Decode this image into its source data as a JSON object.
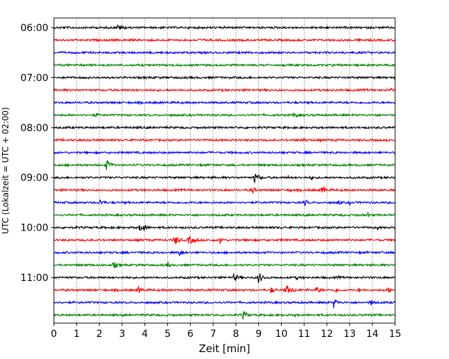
{
  "chart_data": {
    "type": "line",
    "chart_kind": "helicorder",
    "title": "",
    "xlabel": "Zeit  [min]",
    "ylabel": "UTC (Lokalzeit = UTC + 02:00)",
    "xlim": [
      0,
      15
    ],
    "x_ticks": [
      0,
      1,
      2,
      3,
      4,
      5,
      6,
      7,
      8,
      9,
      10,
      11,
      12,
      13,
      14,
      15
    ],
    "x_tick_labels": [
      "0",
      "1",
      "2",
      "3",
      "4",
      "5",
      "6",
      "7",
      "8",
      "9",
      "10",
      "11",
      "12",
      "13",
      "14",
      "15"
    ],
    "x_grid": "dotted vertical lines at every minute",
    "y_tick_labels": [
      "06:00",
      "07:00",
      "08:00",
      "09:00",
      "10:00",
      "11:00"
    ],
    "trace_interval_minutes": 15,
    "trace_colors": [
      "#000000",
      "#ff0000",
      "#0000ff",
      "#008000"
    ],
    "series": [
      {
        "start": "06:00",
        "events": [
          {
            "t": 2.8,
            "amp": 0.35,
            "dur": 0.9
          },
          {
            "t": 0.3,
            "amp": 0.15,
            "dur": 0.3
          }
        ]
      },
      {
        "start": "06:15",
        "events": [
          {
            "t": 6.3,
            "amp": 0.2,
            "dur": 1.2
          },
          {
            "t": 7.2,
            "amp": 0.15,
            "dur": 0.2
          }
        ]
      },
      {
        "start": "06:30",
        "events": []
      },
      {
        "start": "06:45",
        "events": []
      },
      {
        "start": "07:00",
        "events": [
          {
            "t": 6.0,
            "amp": 0.18,
            "dur": 1.2
          },
          {
            "t": 8.5,
            "amp": 0.1,
            "dur": 1.0
          }
        ]
      },
      {
        "start": "07:15",
        "events": [
          {
            "t": 14.8,
            "amp": 0.35,
            "dur": 0.3
          }
        ]
      },
      {
        "start": "07:30",
        "events": []
      },
      {
        "start": "07:45",
        "events": [
          {
            "t": 1.8,
            "amp": 0.25,
            "dur": 0.8
          },
          {
            "t": 10.5,
            "amp": 0.3,
            "dur": 1.2
          }
        ]
      },
      {
        "start": "08:00",
        "events": [
          {
            "t": 3.8,
            "amp": 0.3,
            "dur": 0.1
          },
          {
            "t": 8.5,
            "amp": 0.2,
            "dur": 0.3
          }
        ]
      },
      {
        "start": "08:15",
        "events": [
          {
            "t": 10.9,
            "amp": 0.4,
            "dur": 0.4
          }
        ]
      },
      {
        "start": "08:30",
        "events": []
      },
      {
        "start": "08:45",
        "events": [
          {
            "t": 2.3,
            "amp": 0.7,
            "dur": 0.5
          },
          {
            "t": 7.0,
            "amp": 0.12,
            "dur": 0.2
          }
        ]
      },
      {
        "start": "09:00",
        "events": [
          {
            "t": 8.8,
            "amp": 0.7,
            "dur": 0.6
          },
          {
            "t": 10.3,
            "amp": 0.3,
            "dur": 0.2
          },
          {
            "t": 11.3,
            "amp": 0.5,
            "dur": 0.2
          },
          {
            "t": 6.3,
            "amp": 0.15,
            "dur": 0.1
          }
        ]
      },
      {
        "start": "09:15",
        "events": [
          {
            "t": 8.7,
            "amp": 0.6,
            "dur": 0.3
          },
          {
            "t": 10.4,
            "amp": 0.4,
            "dur": 0.1
          },
          {
            "t": 11.8,
            "amp": 0.8,
            "dur": 0.3
          },
          {
            "t": 11.2,
            "amp": 0.2,
            "dur": 0.1
          }
        ]
      },
      {
        "start": "09:30",
        "events": [
          {
            "t": 2.0,
            "amp": 0.5,
            "dur": 0.5
          },
          {
            "t": 3.1,
            "amp": 0.3,
            "dur": 0.1
          },
          {
            "t": 11.0,
            "amp": 0.6,
            "dur": 0.3
          },
          {
            "t": 12.5,
            "amp": 0.5,
            "dur": 0.2
          },
          {
            "t": 13.0,
            "amp": 0.4,
            "dur": 0.1
          }
        ]
      },
      {
        "start": "09:45",
        "events": [
          {
            "t": 13.8,
            "amp": 0.35,
            "dur": 0.2
          },
          {
            "t": 11.9,
            "amp": 0.2,
            "dur": 0.1
          }
        ]
      },
      {
        "start": "10:00",
        "events": [
          {
            "t": 3.8,
            "amp": 0.8,
            "dur": 0.5
          },
          {
            "t": 14.2,
            "amp": 0.3,
            "dur": 0.3
          }
        ]
      },
      {
        "start": "10:15",
        "events": [
          {
            "t": 5.3,
            "amp": 0.7,
            "dur": 0.5
          },
          {
            "t": 5.9,
            "amp": 0.6,
            "dur": 0.8
          },
          {
            "t": 7.3,
            "amp": 0.6,
            "dur": 0.3
          },
          {
            "t": 8.5,
            "amp": 0.3,
            "dur": 0.2
          },
          {
            "t": 9.3,
            "amp": 0.3,
            "dur": 0.3
          },
          {
            "t": 10.0,
            "amp": 0.25,
            "dur": 0.2
          },
          {
            "t": 4.9,
            "amp": 0.3,
            "dur": 0.1
          }
        ]
      },
      {
        "start": "10:30",
        "events": [
          {
            "t": 5.5,
            "amp": 0.5,
            "dur": 0.5
          },
          {
            "t": 4.8,
            "amp": 0.3,
            "dur": 0.1
          },
          {
            "t": 6.5,
            "amp": 0.2,
            "dur": 0.1
          }
        ]
      },
      {
        "start": "10:45",
        "events": [
          {
            "t": 2.6,
            "amp": 0.5,
            "dur": 0.5
          },
          {
            "t": 5.0,
            "amp": 0.5,
            "dur": 0.3
          }
        ]
      },
      {
        "start": "11:00",
        "events": [
          {
            "t": 7.9,
            "amp": 0.5,
            "dur": 0.6
          },
          {
            "t": 9.0,
            "amp": 0.8,
            "dur": 0.4
          },
          {
            "t": 10.7,
            "amp": 0.6,
            "dur": 0.1
          },
          {
            "t": 12.5,
            "amp": 0.3,
            "dur": 0.2
          },
          {
            "t": 13.6,
            "amp": 0.2,
            "dur": 0.1
          }
        ]
      },
      {
        "start": "11:15",
        "events": [
          {
            "t": 3.7,
            "amp": 0.5,
            "dur": 0.5
          },
          {
            "t": 9.5,
            "amp": 0.5,
            "dur": 0.5
          },
          {
            "t": 10.2,
            "amp": 0.6,
            "dur": 0.8
          },
          {
            "t": 11.5,
            "amp": 0.5,
            "dur": 0.5
          },
          {
            "t": 12.4,
            "amp": 0.4,
            "dur": 0.2
          },
          {
            "t": 13.4,
            "amp": 0.5,
            "dur": 0.1
          },
          {
            "t": 14.7,
            "amp": 0.4,
            "dur": 0.3
          },
          {
            "t": 8.0,
            "amp": 0.2,
            "dur": 0.3
          }
        ]
      },
      {
        "start": "11:30",
        "events": [
          {
            "t": 12.3,
            "amp": 0.7,
            "dur": 0.4
          },
          {
            "t": 13.9,
            "amp": 0.5,
            "dur": 0.4
          },
          {
            "t": 12.0,
            "amp": 0.3,
            "dur": 0.2
          },
          {
            "t": 0.3,
            "amp": 0.2,
            "dur": 0.2
          }
        ]
      },
      {
        "start": "11:45",
        "events": [
          {
            "t": 8.3,
            "amp": 0.6,
            "dur": 0.5
          },
          {
            "t": 10.6,
            "amp": 0.25,
            "dur": 0.2
          }
        ]
      }
    ]
  }
}
